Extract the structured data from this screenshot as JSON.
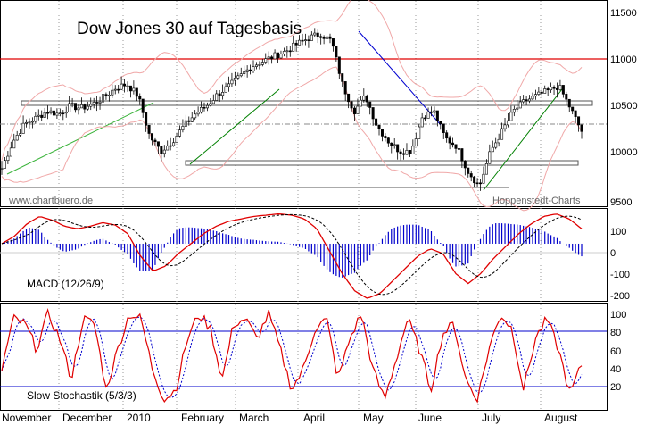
{
  "chart_data": [
    {
      "type": "candlestick",
      "title": "Dow Jones 30 auf Tagesbasis",
      "watermark_left": "www.chartbuero.de",
      "watermark_right": "Hoppenstedt-Charts",
      "y_ticks": [
        "11500",
        "11000",
        "10500",
        "10000",
        "9500"
      ],
      "ylim": [
        9500,
        11550
      ],
      "resistance_level": 11000,
      "close_approx": [
        9880,
        10150,
        10320,
        10380,
        10450,
        10420,
        10500,
        10480,
        10520,
        10590,
        10680,
        10720,
        10600,
        10200,
        10050,
        10150,
        10300,
        10420,
        10500,
        10620,
        10700,
        10800,
        10900,
        10950,
        11000,
        11050,
        11120,
        11180,
        11220,
        11150,
        10700,
        10450,
        10600,
        10300,
        10150,
        10050,
        10050,
        10400,
        10450,
        10180,
        10100,
        9850,
        9700,
        10050,
        10250,
        10450,
        10550,
        10600,
        10650,
        10700,
        10480,
        10250
      ]
    },
    {
      "type": "line",
      "label": "MACD (12/26/9)",
      "y_ticks": [
        "100",
        "0",
        "-100",
        "-200"
      ],
      "ylim": [
        -230,
        140
      ],
      "macd_approx": [
        0,
        30,
        80,
        110,
        95,
        70,
        60,
        70,
        85,
        75,
        40,
        -50,
        -110,
        -90,
        -40,
        0,
        40,
        70,
        90,
        100,
        110,
        115,
        120,
        115,
        100,
        60,
        -30,
        -120,
        -190,
        -220,
        -200,
        -150,
        -100,
        -50,
        -20,
        -40,
        -120,
        -160,
        -120,
        -60,
        -10,
        40,
        80,
        110,
        120,
        100,
        60
      ]
    },
    {
      "type": "line",
      "label": "Slow Stochastik (5/3/3)",
      "y_ticks": [
        "100",
        "80",
        "60",
        "40",
        "20"
      ],
      "ylim": [
        0,
        105
      ],
      "levels": [
        80,
        20
      ],
      "k_approx": [
        40,
        90,
        85,
        60,
        95,
        70,
        30,
        90,
        85,
        20,
        60,
        95,
        90,
        40,
        10,
        20,
        70,
        95,
        80,
        30,
        85,
        90,
        70,
        95,
        60,
        20,
        40,
        80,
        90,
        30,
        70,
        95,
        40,
        10,
        50,
        90,
        60,
        20,
        75,
        85,
        30,
        10,
        60,
        95,
        80,
        20,
        70,
        90,
        60,
        15,
        45
      ]
    }
  ],
  "x_labels": [
    "November",
    "December",
    "2010",
    "February",
    "March",
    "April",
    "May",
    "June",
    "July",
    "August"
  ],
  "colors": {
    "price": "#000000",
    "bollinger": "#f0a8a8",
    "resistance": "#e00000",
    "trend_up": "#008000",
    "trend_down": "#0000d0",
    "macd_line": "#e00000",
    "signal_line": "#000000",
    "histogram": "#0000cc",
    "stoch_k": "#e00000",
    "stoch_d": "#0000cc",
    "level_line": "#0000cc"
  }
}
